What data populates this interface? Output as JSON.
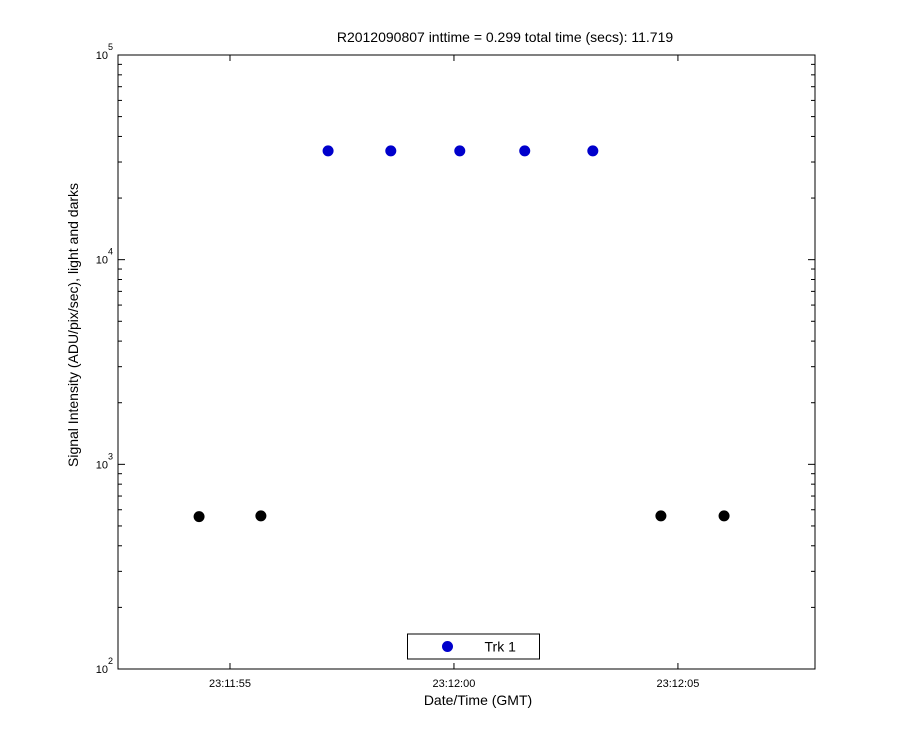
{
  "chart_data": {
    "type": "scatter",
    "title": "R2012090807 inttime = 0.299 total time (secs): 11.719",
    "x_label": "Date/Time (GMT)",
    "y_label": "Signal Intensity (ADU/pix/sec), light and darks",
    "xlim": [
      83512.5,
      83528.06
    ],
    "xticks": [
      {
        "value": 83515,
        "label": "23:11:55"
      },
      {
        "value": 83520,
        "label": "23:12:00"
      },
      {
        "value": 83525,
        "label": "23:12:05"
      }
    ],
    "ylim": [
      100,
      100000
    ],
    "yscale": "log",
    "yticks": [
      {
        "value": 100,
        "label": "10",
        "exponent": "2"
      },
      {
        "value": 1000,
        "label": "10",
        "exponent": "3"
      },
      {
        "value": 10000,
        "label": "10",
        "exponent": "4"
      },
      {
        "value": 100000,
        "label": "10",
        "exponent": "5"
      }
    ],
    "grid": false,
    "legend": "lower center",
    "series": [
      {
        "name": "Trk 1",
        "color": "#0000cc",
        "x": [
          83517.19,
          83518.59,
          83520.13,
          83521.58,
          83523.1
        ],
        "values": [
          34000,
          34000,
          34000,
          34000,
          34000
        ]
      },
      {
        "color": "#000000",
        "x": [
          83514.31,
          83515.69,
          83524.62,
          83526.03
        ],
        "values": [
          555,
          560,
          560,
          560
        ]
      }
    ]
  }
}
